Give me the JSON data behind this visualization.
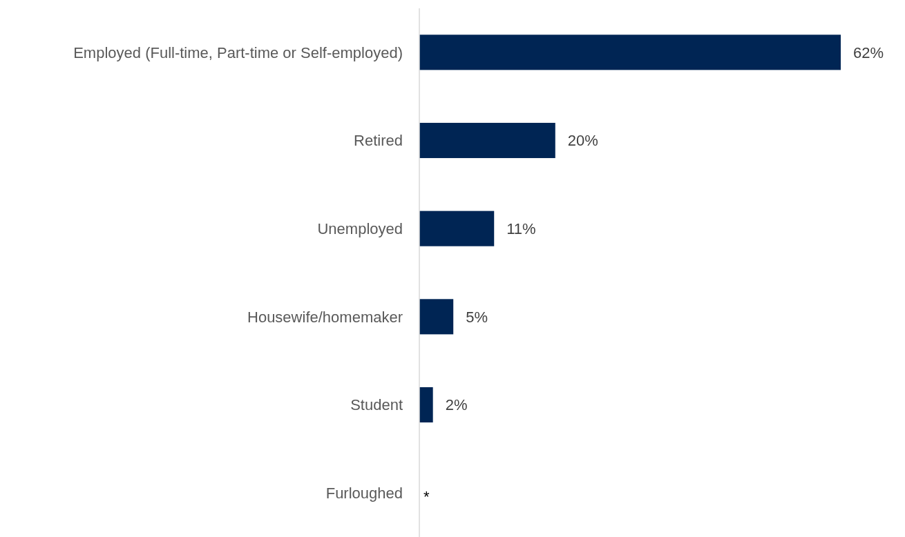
{
  "chart_data": {
    "type": "bar",
    "orientation": "horizontal",
    "categories": [
      "Employed (Full-time, Part-time or Self-employed)",
      "Retired",
      "Unemployed",
      "Housewife/homemaker",
      "Student",
      "Furloughed"
    ],
    "values": [
      62,
      20,
      11,
      5,
      2,
      null
    ],
    "value_labels": [
      "62%",
      "20%",
      "11%",
      "5%",
      "2%",
      "*"
    ],
    "color": "#002554"
  }
}
